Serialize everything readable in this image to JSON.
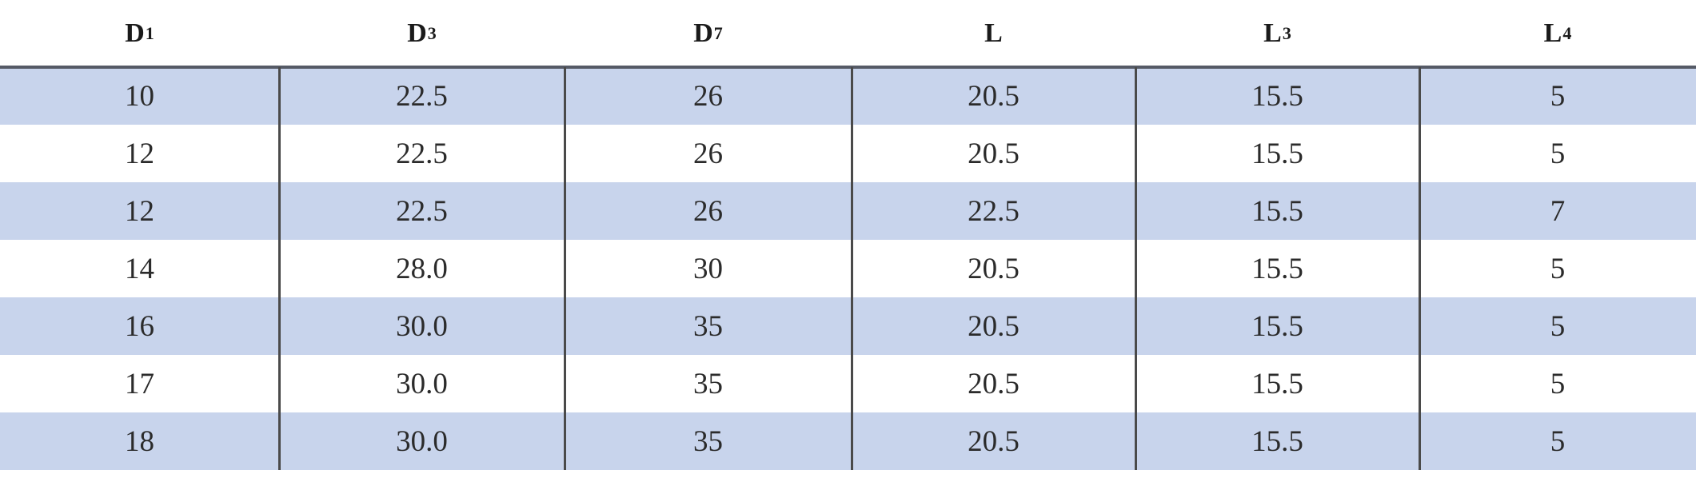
{
  "table": {
    "header": [
      {
        "text": "D",
        "sub": "1"
      },
      {
        "text": "D",
        "sub": "3"
      },
      {
        "text": "D",
        "sub": "7"
      },
      {
        "text": "L"
      },
      {
        "text": "L",
        "sub": "3"
      },
      {
        "text": "L",
        "sub": "4"
      }
    ],
    "rows": [
      [
        "10",
        "22.5",
        "26",
        "20.5",
        "15.5",
        "5"
      ],
      [
        "12",
        "22.5",
        "26",
        "20.5",
        "15.5",
        "5"
      ],
      [
        "12",
        "22.5",
        "26",
        "22.5",
        "15.5",
        "7"
      ],
      [
        "14",
        "28.0",
        "30",
        "20.5",
        "15.5",
        "5"
      ],
      [
        "16",
        "30.0",
        "35",
        "20.5",
        "15.5",
        "5"
      ],
      [
        "17",
        "30.0",
        "35",
        "20.5",
        "15.5",
        "5"
      ],
      [
        "18",
        "30.0",
        "35",
        "20.5",
        "15.5",
        "5"
      ]
    ]
  }
}
